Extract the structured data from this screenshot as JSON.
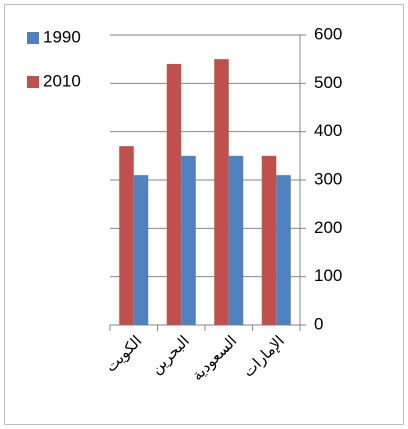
{
  "chart_data": {
    "type": "bar",
    "categories": [
      "الكويت",
      "البحرين",
      "السعودية",
      "الإمارات"
    ],
    "series": [
      {
        "name": "2010",
        "color": "#c0504d",
        "values": [
          370,
          540,
          550,
          350
        ]
      },
      {
        "name": "1990",
        "color": "#4f81bd",
        "values": [
          310,
          350,
          350,
          310
        ]
      }
    ],
    "ylim": [
      0,
      600
    ],
    "yticks": [
      0,
      100,
      200,
      300,
      400,
      500,
      600
    ],
    "grid": true,
    "legend": "left"
  }
}
